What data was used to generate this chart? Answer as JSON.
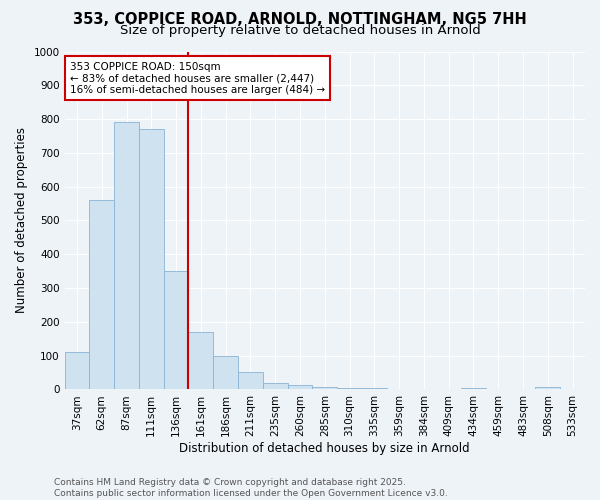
{
  "title": "353, COPPICE ROAD, ARNOLD, NOTTINGHAM, NG5 7HH",
  "subtitle": "Size of property relative to detached houses in Arnold",
  "xlabel": "Distribution of detached houses by size in Arnold",
  "ylabel": "Number of detached properties",
  "categories": [
    "37sqm",
    "62sqm",
    "87sqm",
    "111sqm",
    "136sqm",
    "161sqm",
    "186sqm",
    "211sqm",
    "235sqm",
    "260sqm",
    "285sqm",
    "310sqm",
    "335sqm",
    "359sqm",
    "384sqm",
    "409sqm",
    "434sqm",
    "459sqm",
    "483sqm",
    "508sqm",
    "533sqm"
  ],
  "values": [
    110,
    560,
    790,
    770,
    350,
    170,
    100,
    52,
    18,
    12,
    8,
    5,
    4,
    2,
    1,
    0,
    5,
    1,
    0,
    7,
    1
  ],
  "bar_color": "#cfe2f0",
  "bar_edge_color": "#8ab4d4",
  "red_line_color": "#cc0000",
  "annotation_text": "353 COPPICE ROAD: 150sqm\n← 83% of detached houses are smaller (2,447)\n16% of semi-detached houses are larger (484) →",
  "annotation_box_color": "#ffffff",
  "annotation_box_edge_color": "#cc0000",
  "ylim": [
    0,
    1000
  ],
  "yticks": [
    0,
    100,
    200,
    300,
    400,
    500,
    600,
    700,
    800,
    900,
    1000
  ],
  "bg_color": "#eef3f8",
  "grid_color": "#ffffff",
  "footer_text": "Contains HM Land Registry data © Crown copyright and database right 2025.\nContains public sector information licensed under the Open Government Licence v3.0.",
  "title_fontsize": 10.5,
  "subtitle_fontsize": 9.5,
  "axis_label_fontsize": 8.5,
  "tick_fontsize": 7.5,
  "annotation_fontsize": 7.5,
  "footer_fontsize": 6.5
}
